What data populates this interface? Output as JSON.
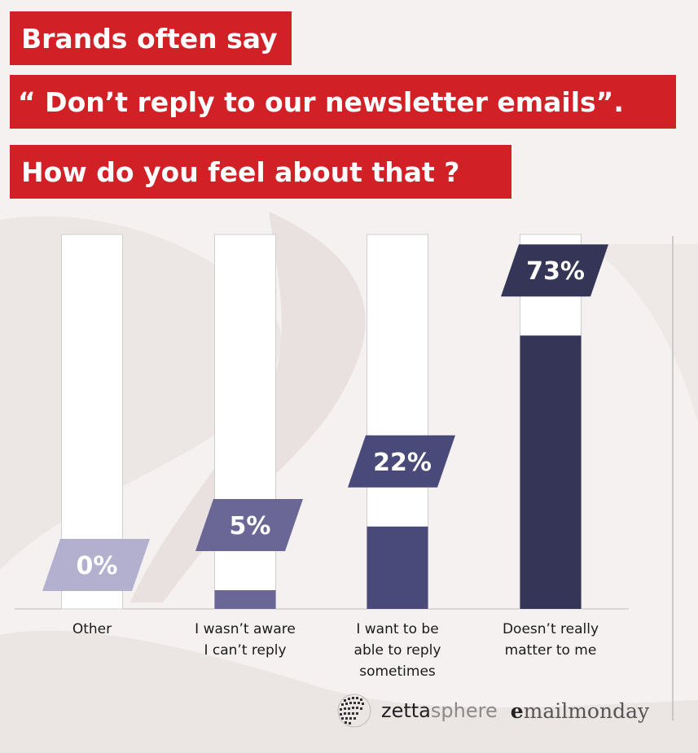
{
  "titles": {
    "line1": "Brands often say",
    "line2": "“ Don’t reply to our newsletter emails”.",
    "line3": "How do you feel about that ?"
  },
  "colors": {
    "title_bg": "#d22027",
    "bar_track": "#ffffff",
    "bar_border": "#cfcfcf"
  },
  "chart_data": {
    "type": "bar",
    "categories": [
      "Other",
      "I wasn’t aware\nI can’t reply",
      "I want to be\nable to reply\nsometimes",
      "Doesn’t really\nmatter to me"
    ],
    "values": [
      0,
      5,
      22,
      73
    ],
    "value_labels": [
      "0%",
      "5%",
      "22%",
      "73%"
    ],
    "bar_colors": [
      "#b3b0cf",
      "#6a6796",
      "#4a4a7a",
      "#353657"
    ],
    "ylim": [
      0,
      100
    ],
    "xlabel": "",
    "ylabel": "",
    "grid": false
  },
  "footer": {
    "brand1_strong": "zetta",
    "brand1_light": "sphere",
    "brand2_strong": "e",
    "brand2_rest": "mailmonday",
    "globe_icon": "zettasphere-globe-icon"
  }
}
